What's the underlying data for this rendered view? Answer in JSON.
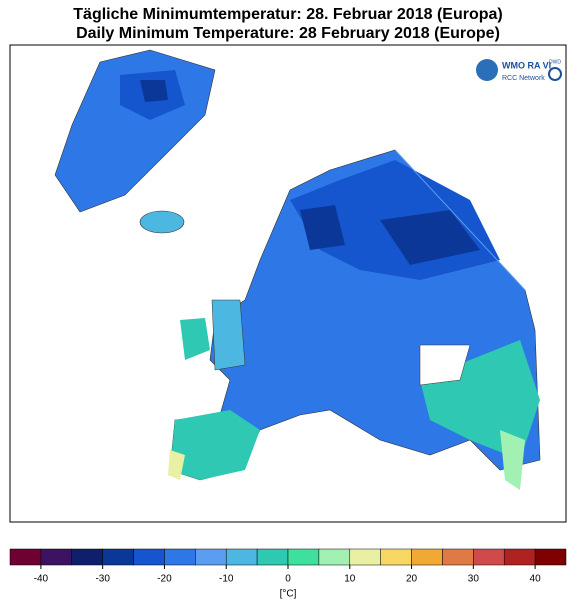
{
  "header": {
    "title_de": "Tägliche Minimumtemperatur:  28. Februar 2018  (Europa)",
    "title_en": "Daily Minimum Temperature:  28 February 2018  (Europe)"
  },
  "logo": {
    "org": "WMO RA VI",
    "network": "RCC Network",
    "dwd": "DWD"
  },
  "colorbar": {
    "bounds": [
      -45,
      -40,
      -35,
      -30,
      -25,
      -20,
      -15,
      -10,
      -5,
      0,
      5,
      10,
      15,
      20,
      25,
      30,
      35,
      40,
      45
    ],
    "colors": [
      "#6e0032",
      "#3e1262",
      "#0f1f6c",
      "#0b3898",
      "#1556cf",
      "#2e77e6",
      "#5b9df0",
      "#4cb7e1",
      "#2fc8b2",
      "#3fe09e",
      "#a2f0b2",
      "#e9f0a3",
      "#f7d862",
      "#f0a933",
      "#e07a44",
      "#cf4b4b",
      "#ae2222",
      "#7e0000"
    ],
    "ticks": [
      -40,
      -30,
      -20,
      -10,
      0,
      10,
      20,
      30,
      40
    ],
    "unit": "[°C]"
  }
}
